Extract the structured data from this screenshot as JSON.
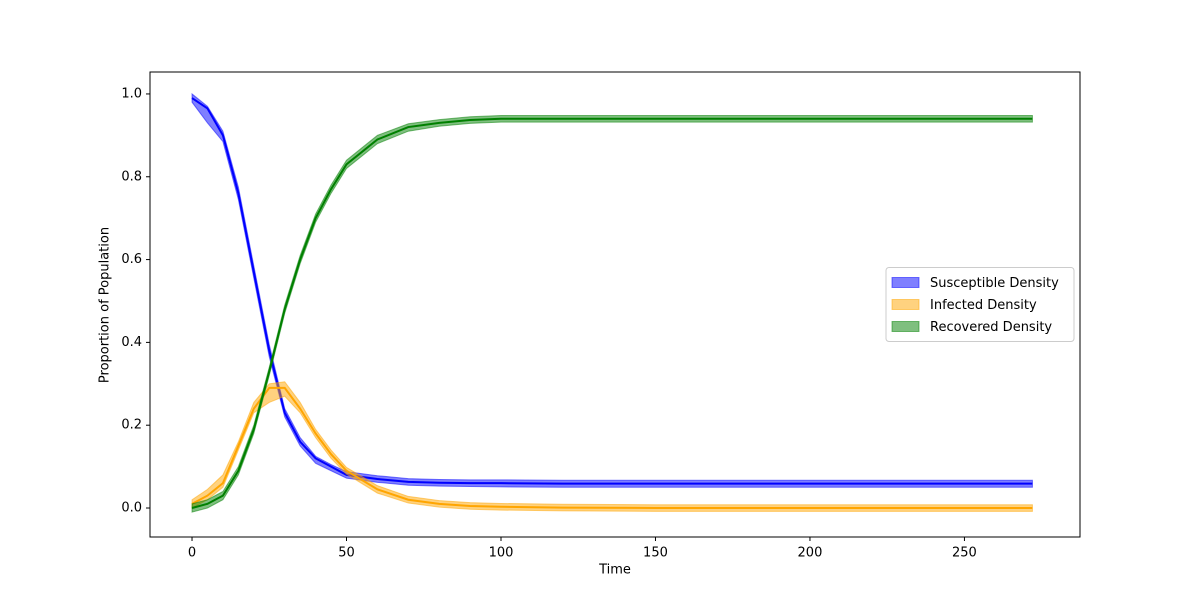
{
  "chart_data": {
    "type": "line",
    "xlabel": "Time",
    "ylabel": "Proportion of Population",
    "x": [
      0,
      5,
      10,
      15,
      20,
      25,
      30,
      35,
      40,
      45,
      50,
      60,
      70,
      80,
      90,
      100,
      120,
      150,
      200,
      250,
      272
    ],
    "series": [
      {
        "name": "Susceptible Density",
        "color": "#0000ff",
        "values": [
          0.99,
          0.965,
          0.9,
          0.76,
          0.57,
          0.38,
          0.23,
          0.16,
          0.12,
          0.1,
          0.08,
          0.07,
          0.063,
          0.061,
          0.06,
          0.06,
          0.059,
          0.059,
          0.059,
          0.059,
          0.059
        ],
        "lower": [
          0.98,
          0.93,
          0.885,
          0.745,
          0.555,
          0.365,
          0.22,
          0.15,
          0.108,
          0.09,
          0.072,
          0.062,
          0.055,
          0.053,
          0.052,
          0.051,
          0.05,
          0.05,
          0.05,
          0.05,
          0.05
        ],
        "upper": [
          1.0,
          0.97,
          0.91,
          0.775,
          0.585,
          0.395,
          0.24,
          0.17,
          0.125,
          0.105,
          0.088,
          0.078,
          0.071,
          0.069,
          0.068,
          0.068,
          0.067,
          0.067,
          0.067,
          0.067,
          0.067
        ]
      },
      {
        "name": "Infected Density",
        "color": "#ffa500",
        "values": [
          0.01,
          0.03,
          0.06,
          0.15,
          0.24,
          0.29,
          0.29,
          0.24,
          0.18,
          0.13,
          0.09,
          0.045,
          0.02,
          0.01,
          0.005,
          0.003,
          0.001,
          0,
          0,
          0,
          0
        ],
        "lower": [
          0.0,
          0.02,
          0.05,
          0.14,
          0.23,
          0.255,
          0.27,
          0.23,
          0.17,
          0.12,
          0.082,
          0.036,
          0.012,
          0.002,
          -0.003,
          -0.005,
          -0.007,
          -0.008,
          -0.008,
          -0.008,
          -0.008
        ],
        "upper": [
          0.02,
          0.045,
          0.08,
          0.16,
          0.255,
          0.3,
          0.305,
          0.255,
          0.19,
          0.14,
          0.098,
          0.054,
          0.028,
          0.018,
          0.013,
          0.011,
          0.009,
          0.008,
          0.008,
          0.008,
          0.008
        ]
      },
      {
        "name": "Recovered Density",
        "color": "#008000",
        "values": [
          0.0,
          0.01,
          0.03,
          0.09,
          0.19,
          0.33,
          0.48,
          0.6,
          0.7,
          0.77,
          0.83,
          0.89,
          0.92,
          0.93,
          0.937,
          0.94,
          0.94,
          0.94,
          0.94,
          0.94,
          0.94
        ],
        "lower": [
          -0.01,
          0.0,
          0.02,
          0.08,
          0.18,
          0.32,
          0.47,
          0.59,
          0.69,
          0.76,
          0.82,
          0.88,
          0.91,
          0.922,
          0.929,
          0.932,
          0.932,
          0.932,
          0.932,
          0.932,
          0.932
        ],
        "upper": [
          0.01,
          0.02,
          0.04,
          0.1,
          0.2,
          0.34,
          0.49,
          0.61,
          0.71,
          0.78,
          0.84,
          0.9,
          0.928,
          0.938,
          0.945,
          0.948,
          0.948,
          0.948,
          0.948,
          0.948,
          0.948
        ]
      }
    ],
    "xlim": [
      -13.6,
      287.4
    ],
    "ylim": [
      -0.07,
      1.053
    ],
    "xticks": [
      0,
      50,
      100,
      150,
      200,
      250
    ],
    "yticks": [
      {
        "value": 0,
        "label": "0.0"
      },
      0.2,
      0.4,
      0.6,
      0.8,
      {
        "value": 1,
        "label": "1.0"
      }
    ],
    "band_opacity": 0.5,
    "legend": "center right",
    "grid": false
  }
}
